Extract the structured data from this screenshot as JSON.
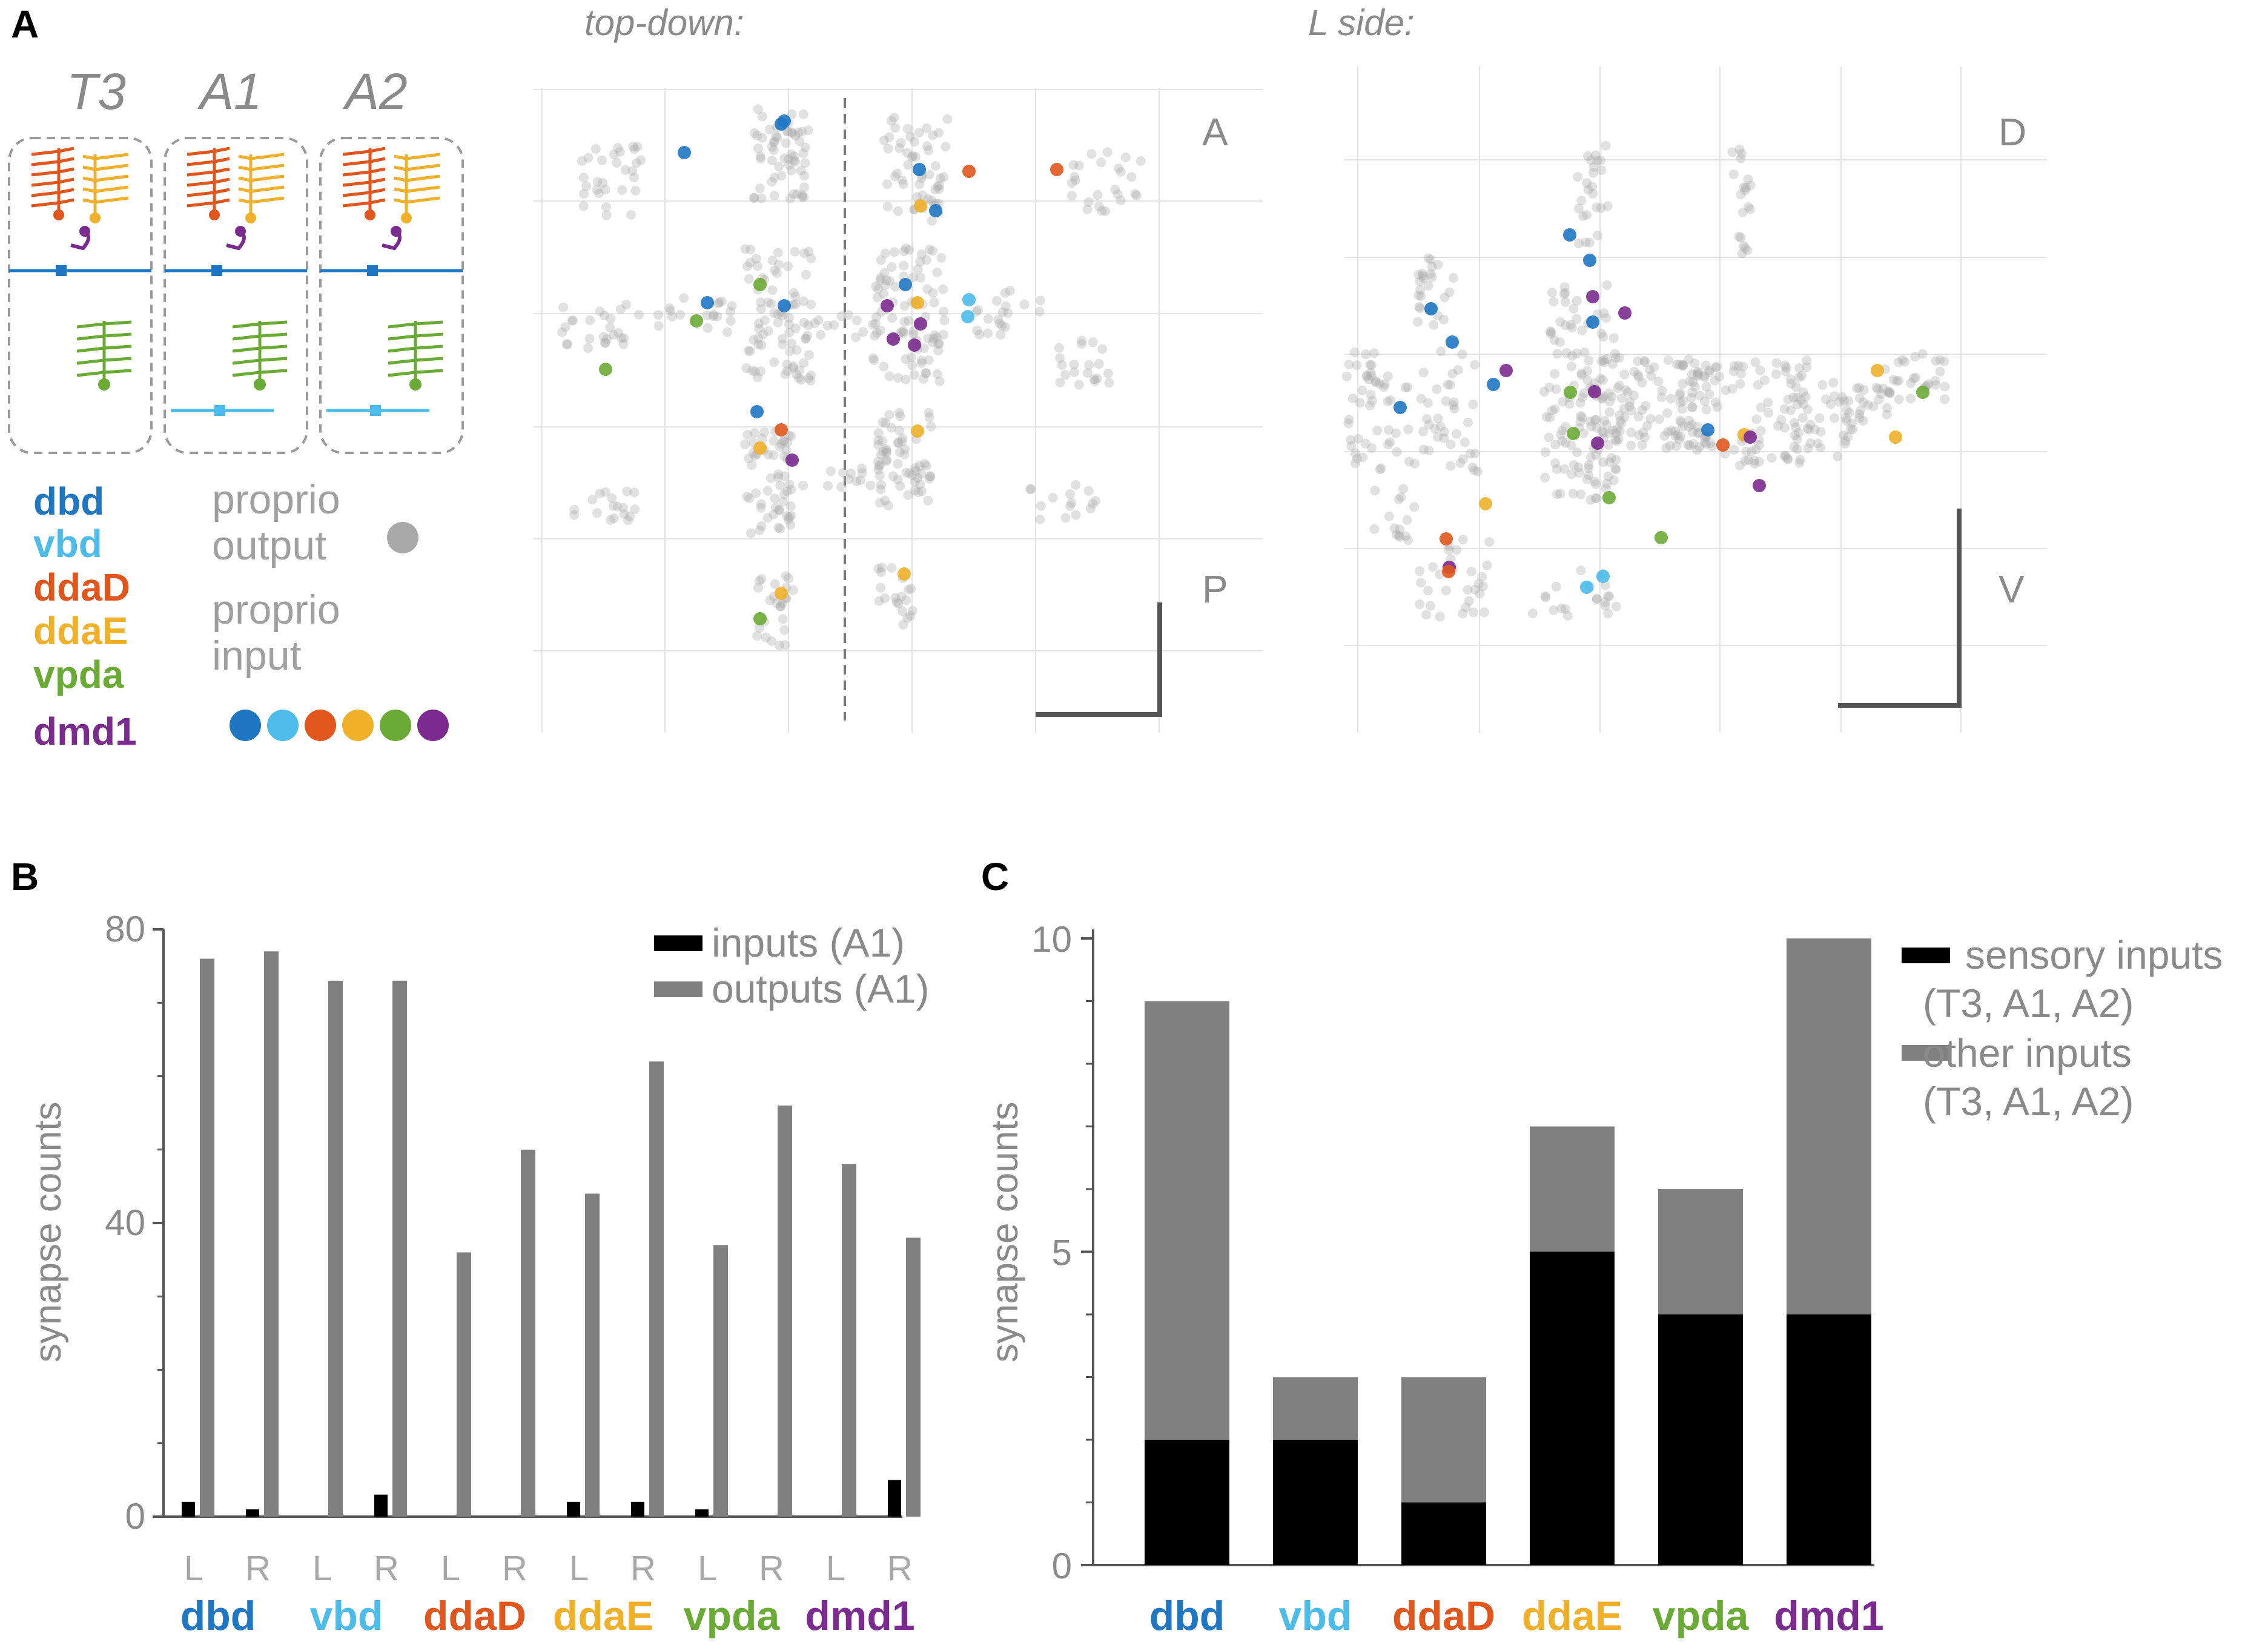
{
  "figure": {
    "panel_a_letter": "A",
    "panel_b_letter": "B",
    "panel_c_letter": "C",
    "top_down_title": "top-down:",
    "l_side_title": "L side:",
    "segments": [
      "T3",
      "A1",
      "A2"
    ],
    "orient_top_down": [
      "A",
      "P"
    ],
    "orient_l_side": [
      "D",
      "V"
    ],
    "legend_neurons": [
      {
        "name": "dbd",
        "color": "#1f77c4"
      },
      {
        "name": "vbd",
        "color": "#4dbcea"
      },
      {
        "name": "ddaD",
        "color": "#e0561c"
      },
      {
        "name": "ddaE",
        "color": "#f0b02a"
      },
      {
        "name": "vpda",
        "color": "#6aab35"
      },
      {
        "name": "dmd1",
        "color": "#7b2b8f"
      }
    ],
    "proprio_output_label_1": "proprio",
    "proprio_output_label_2": "output",
    "proprio_input_label_1": "proprio",
    "proprio_input_label_2": "input",
    "output_dot_color": "#a8a8a8"
  },
  "chart_data": [
    {
      "id": "B",
      "type": "bar",
      "ylabel": "synapse counts",
      "ylim": [
        0,
        80
      ],
      "yticks": [
        0,
        40,
        80
      ],
      "groups": [
        "dbd",
        "vbd",
        "ddaD",
        "ddaE",
        "vpda",
        "dmd1"
      ],
      "group_colors": [
        "#1f77c4",
        "#4dbcea",
        "#e0561c",
        "#f0b02a",
        "#6aab35",
        "#7b2b8f"
      ],
      "subcategories": [
        "L",
        "R"
      ],
      "series": [
        {
          "name": "inputs (A1)",
          "color": "#000000",
          "values": [
            2,
            1,
            0,
            3,
            0,
            0,
            2,
            2,
            1,
            0,
            0,
            5
          ]
        },
        {
          "name": "outputs (A1)",
          "color": "#808080",
          "values": [
            76,
            77,
            73,
            73,
            36,
            50,
            44,
            62,
            37,
            56,
            48,
            38
          ]
        }
      ]
    },
    {
      "id": "C",
      "type": "bar",
      "stacked": true,
      "ylabel": "synapse counts",
      "ylim": [
        0,
        10
      ],
      "yticks": [
        0,
        5,
        10
      ],
      "categories": [
        "dbd",
        "vbd",
        "ddaD",
        "ddaE",
        "vpda",
        "dmd1"
      ],
      "category_colors": [
        "#1f77c4",
        "#4dbcea",
        "#e0561c",
        "#f0b02a",
        "#6aab35",
        "#7b2b8f"
      ],
      "series": [
        {
          "name": "sensory inputs",
          "name_line2": "(T3, A1, A2)",
          "color": "#000000",
          "values": [
            2,
            2,
            1,
            5,
            4,
            4
          ]
        },
        {
          "name": "other inputs",
          "name_line2": "(T3, A1, A2)",
          "color": "#808080",
          "values": [
            7,
            1,
            2,
            2,
            2,
            6
          ]
        }
      ]
    }
  ]
}
